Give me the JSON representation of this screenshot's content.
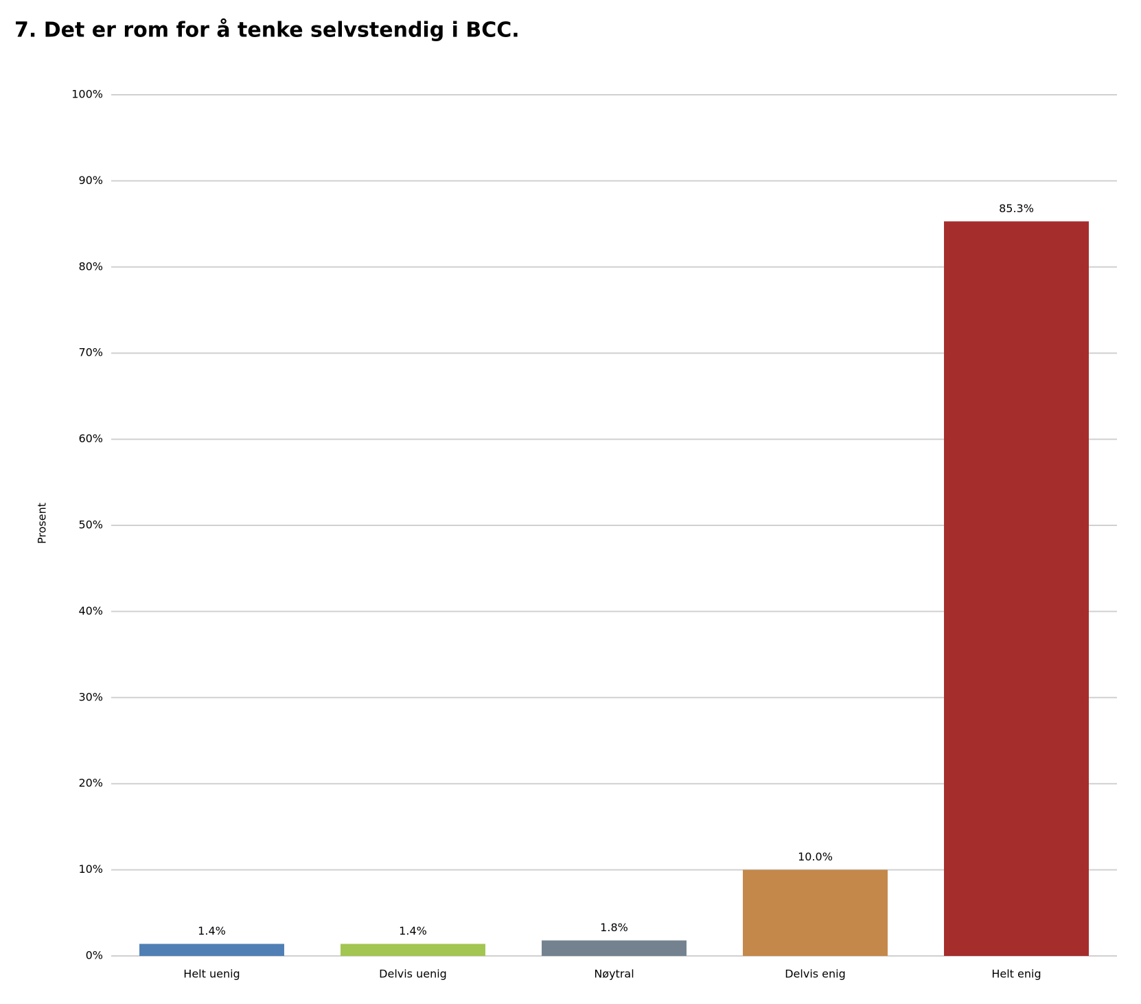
{
  "chart_data": {
    "type": "bar",
    "title": "7. Det er rom for å tenke selvstendig i BCC.",
    "y_label": "Prosent",
    "categories": [
      "Helt uenig",
      "Delvis uenig",
      "Nøytral",
      "Delvis enig",
      "Helt enig"
    ],
    "values": [
      1.4,
      1.4,
      1.8,
      10.0,
      85.3
    ],
    "value_labels": [
      "1.4%",
      "1.4%",
      "1.8%",
      "10.0%",
      "85.3%"
    ],
    "colors": [
      "#4f7fb4",
      "#a3c552",
      "#74828f",
      "#c4884b",
      "#a52d2c"
    ],
    "ylim": [
      0,
      100
    ],
    "yticks": [
      {
        "value": 0,
        "label": "0%"
      },
      {
        "value": 10,
        "label": "10%"
      },
      {
        "value": 20,
        "label": "20%"
      },
      {
        "value": 30,
        "label": "30%"
      },
      {
        "value": 40,
        "label": "40%"
      },
      {
        "value": 50,
        "label": "50%"
      },
      {
        "value": 60,
        "label": "60%"
      },
      {
        "value": 70,
        "label": "70%"
      },
      {
        "value": 80,
        "label": "80%"
      },
      {
        "value": 90,
        "label": "90%"
      },
      {
        "value": 100,
        "label": "100%"
      }
    ],
    "grid": true
  }
}
